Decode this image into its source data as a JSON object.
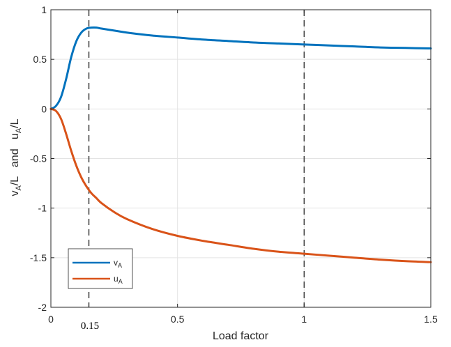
{
  "chart_data": {
    "type": "line",
    "xlabel": "Load factor",
    "ylabel": {
      "v": "v",
      "v_sub": "A",
      "mid": "/L   and   ",
      "u": "u",
      "u_sub": "A",
      "end": "/L"
    },
    "xlim": [
      0,
      1.5
    ],
    "ylim": [
      -2,
      1
    ],
    "xticks": [
      0,
      0.5,
      1,
      1.5
    ],
    "yticks": [
      -2,
      -1.5,
      -1,
      -0.5,
      0,
      0.5,
      1
    ],
    "xtick_labels": [
      "0",
      "0.5",
      "1",
      "1.5"
    ],
    "ytick_labels": [
      "-2",
      "-1.5",
      "-1",
      "-0.5",
      "0",
      "0.5",
      "1"
    ],
    "grid": true,
    "legend_position": "bottom-left",
    "vlines": [
      0.15,
      1
    ],
    "annotation": "0.15",
    "series": [
      {
        "name": "v",
        "name_sub": "A",
        "color": "#0072BD",
        "x": [
          0,
          0.02,
          0.04,
          0.06,
          0.08,
          0.1,
          0.12,
          0.14,
          0.16,
          0.18,
          0.2,
          0.25,
          0.3,
          0.4,
          0.5,
          0.6,
          0.7,
          0.8,
          0.9,
          1.0,
          1.1,
          1.2,
          1.3,
          1.4,
          1.5
        ],
        "y": [
          0,
          0.03,
          0.12,
          0.3,
          0.52,
          0.68,
          0.77,
          0.81,
          0.82,
          0.82,
          0.81,
          0.79,
          0.77,
          0.74,
          0.72,
          0.7,
          0.685,
          0.67,
          0.66,
          0.65,
          0.64,
          0.63,
          0.62,
          0.615,
          0.61
        ]
      },
      {
        "name": "u",
        "name_sub": "A",
        "color": "#D95319",
        "x": [
          0,
          0.02,
          0.04,
          0.06,
          0.08,
          0.1,
          0.12,
          0.14,
          0.16,
          0.18,
          0.2,
          0.25,
          0.3,
          0.4,
          0.5,
          0.6,
          0.7,
          0.8,
          0.9,
          1.0,
          1.1,
          1.2,
          1.3,
          1.4,
          1.5
        ],
        "y": [
          0,
          -0.02,
          -0.1,
          -0.25,
          -0.42,
          -0.57,
          -0.69,
          -0.78,
          -0.85,
          -0.9,
          -0.95,
          -1.04,
          -1.11,
          -1.21,
          -1.28,
          -1.33,
          -1.37,
          -1.41,
          -1.44,
          -1.46,
          -1.48,
          -1.5,
          -1.52,
          -1.535,
          -1.545
        ]
      }
    ]
  }
}
